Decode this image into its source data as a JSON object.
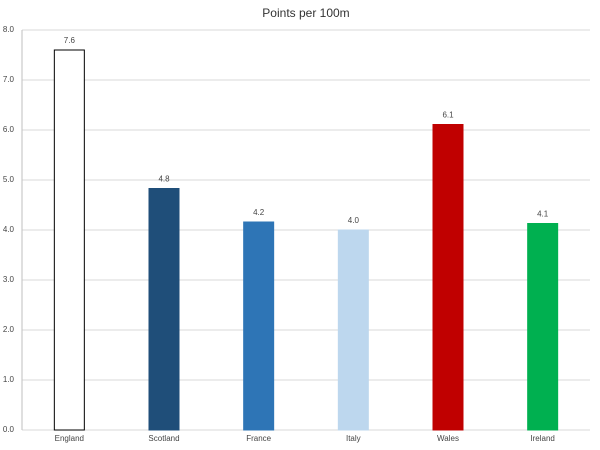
{
  "chart_data": {
    "type": "bar",
    "title": "Points per 100m",
    "categories": [
      "England",
      "Scotland",
      "France",
      "Italy",
      "Wales",
      "Ireland"
    ],
    "values": [
      7.6,
      4.83,
      4.16,
      4.0,
      6.11,
      4.13
    ],
    "value_labels": [
      "7.6",
      "4.8",
      "4.2",
      "4.0",
      "6.1",
      "4.1"
    ],
    "colors": [
      "#ffffff",
      "#1f4e79",
      "#2e75b6",
      "#bdd7ee",
      "#c00000",
      "#00b050"
    ],
    "edgecolors": [
      "#000000",
      "#1f4e79",
      "#2e75b6",
      "#bdd7ee",
      "#c00000",
      "#00b050"
    ],
    "ylim": [
      0,
      8
    ],
    "yticks": [
      {
        "value": 0,
        "label": "0.0"
      },
      {
        "value": 1,
        "label": "1.0"
      },
      {
        "value": 2,
        "label": "2.0"
      },
      {
        "value": 3,
        "label": "3.0"
      },
      {
        "value": 4,
        "label": "4.0"
      },
      {
        "value": 5,
        "label": "5.0"
      },
      {
        "value": 6,
        "label": "6.0"
      },
      {
        "value": 7,
        "label": "7.0"
      },
      {
        "value": 8,
        "label": "8.0"
      }
    ],
    "grid": true
  }
}
